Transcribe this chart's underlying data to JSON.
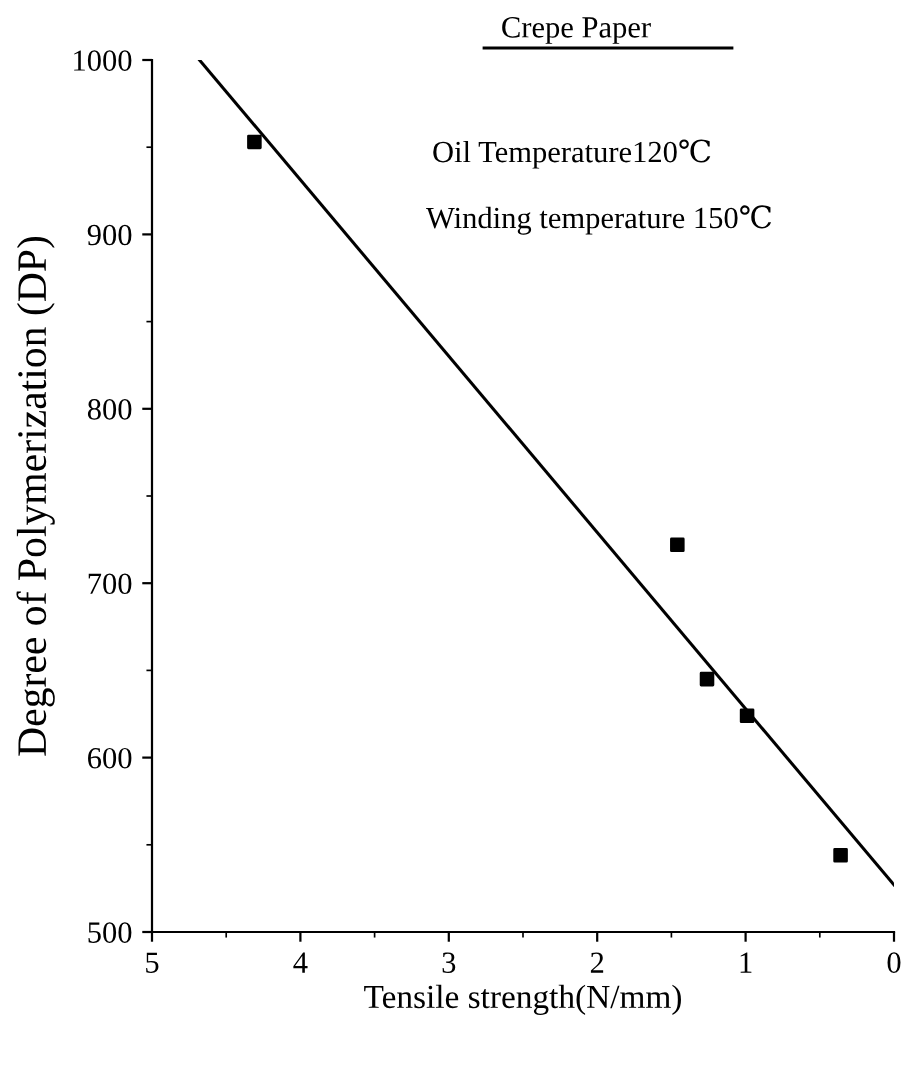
{
  "chart_data": {
    "type": "scatter",
    "title": "Crepe Paper",
    "xlabel": "Tensile strength(N/mm)",
    "ylabel": "Degree of Polymerization (DP)",
    "annotations": [
      "Oil Temperature120℃",
      "Winding temperature 150℃"
    ],
    "series": [
      {
        "color": "#000000",
        "marker": "square",
        "x": [
          4.31,
          1.46,
          1.26,
          0.99,
          0.36
        ],
        "values": [
          953,
          722,
          645,
          624,
          544
        ]
      },
      {
        "type": "line",
        "color": "#000000",
        "marker": "none",
        "line_style": "solid",
        "x": [
          4.68,
          0
        ],
        "values": [
          1000,
          527
        ]
      }
    ],
    "xlim": [
      5,
      0
    ],
    "ylim": [
      500,
      1000
    ],
    "xticks": [
      5,
      4,
      3,
      2,
      1,
      0
    ],
    "yticks": [
      500,
      600,
      700,
      800,
      900,
      1000
    ],
    "grid": false,
    "legend": false
  }
}
